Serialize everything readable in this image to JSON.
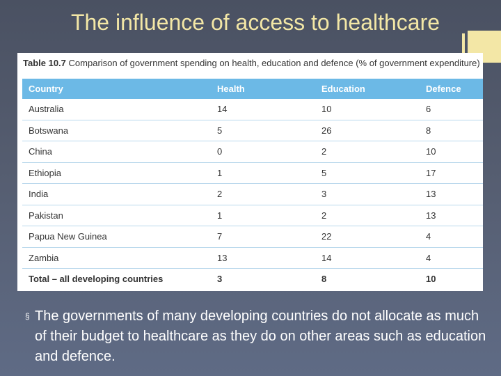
{
  "slide": {
    "title": "The influence of access to healthcare"
  },
  "table": {
    "caption_label": "Table 10.7",
    "caption_text": "Comparison of government spending on health, education and defence (% of government expenditure)",
    "headers": [
      "Country",
      "Health",
      "Education",
      "Defence"
    ],
    "rows": [
      [
        "Australia",
        "14",
        "10",
        "6"
      ],
      [
        "Botswana",
        "5",
        "26",
        "8"
      ],
      [
        "China",
        "0",
        "2",
        "10"
      ],
      [
        "Ethiopia",
        "1",
        "5",
        "17"
      ],
      [
        "India",
        "2",
        "3",
        "13"
      ],
      [
        "Pakistan",
        "1",
        "2",
        "13"
      ],
      [
        "Papua New Guinea",
        "7",
        "22",
        "4"
      ],
      [
        "Zambia",
        "13",
        "14",
        "4"
      ]
    ],
    "total_row": [
      "Total – all developing countries",
      "3",
      "8",
      "10"
    ]
  },
  "bullet": {
    "marker": "§",
    "text": "The governments of many developing countries do not allocate as much of their budget to healthcare as they do on other areas such as education and defence."
  },
  "colors": {
    "title": "#f3e7a6",
    "header_bg": "#6cb9e6",
    "background": "#555d70"
  }
}
